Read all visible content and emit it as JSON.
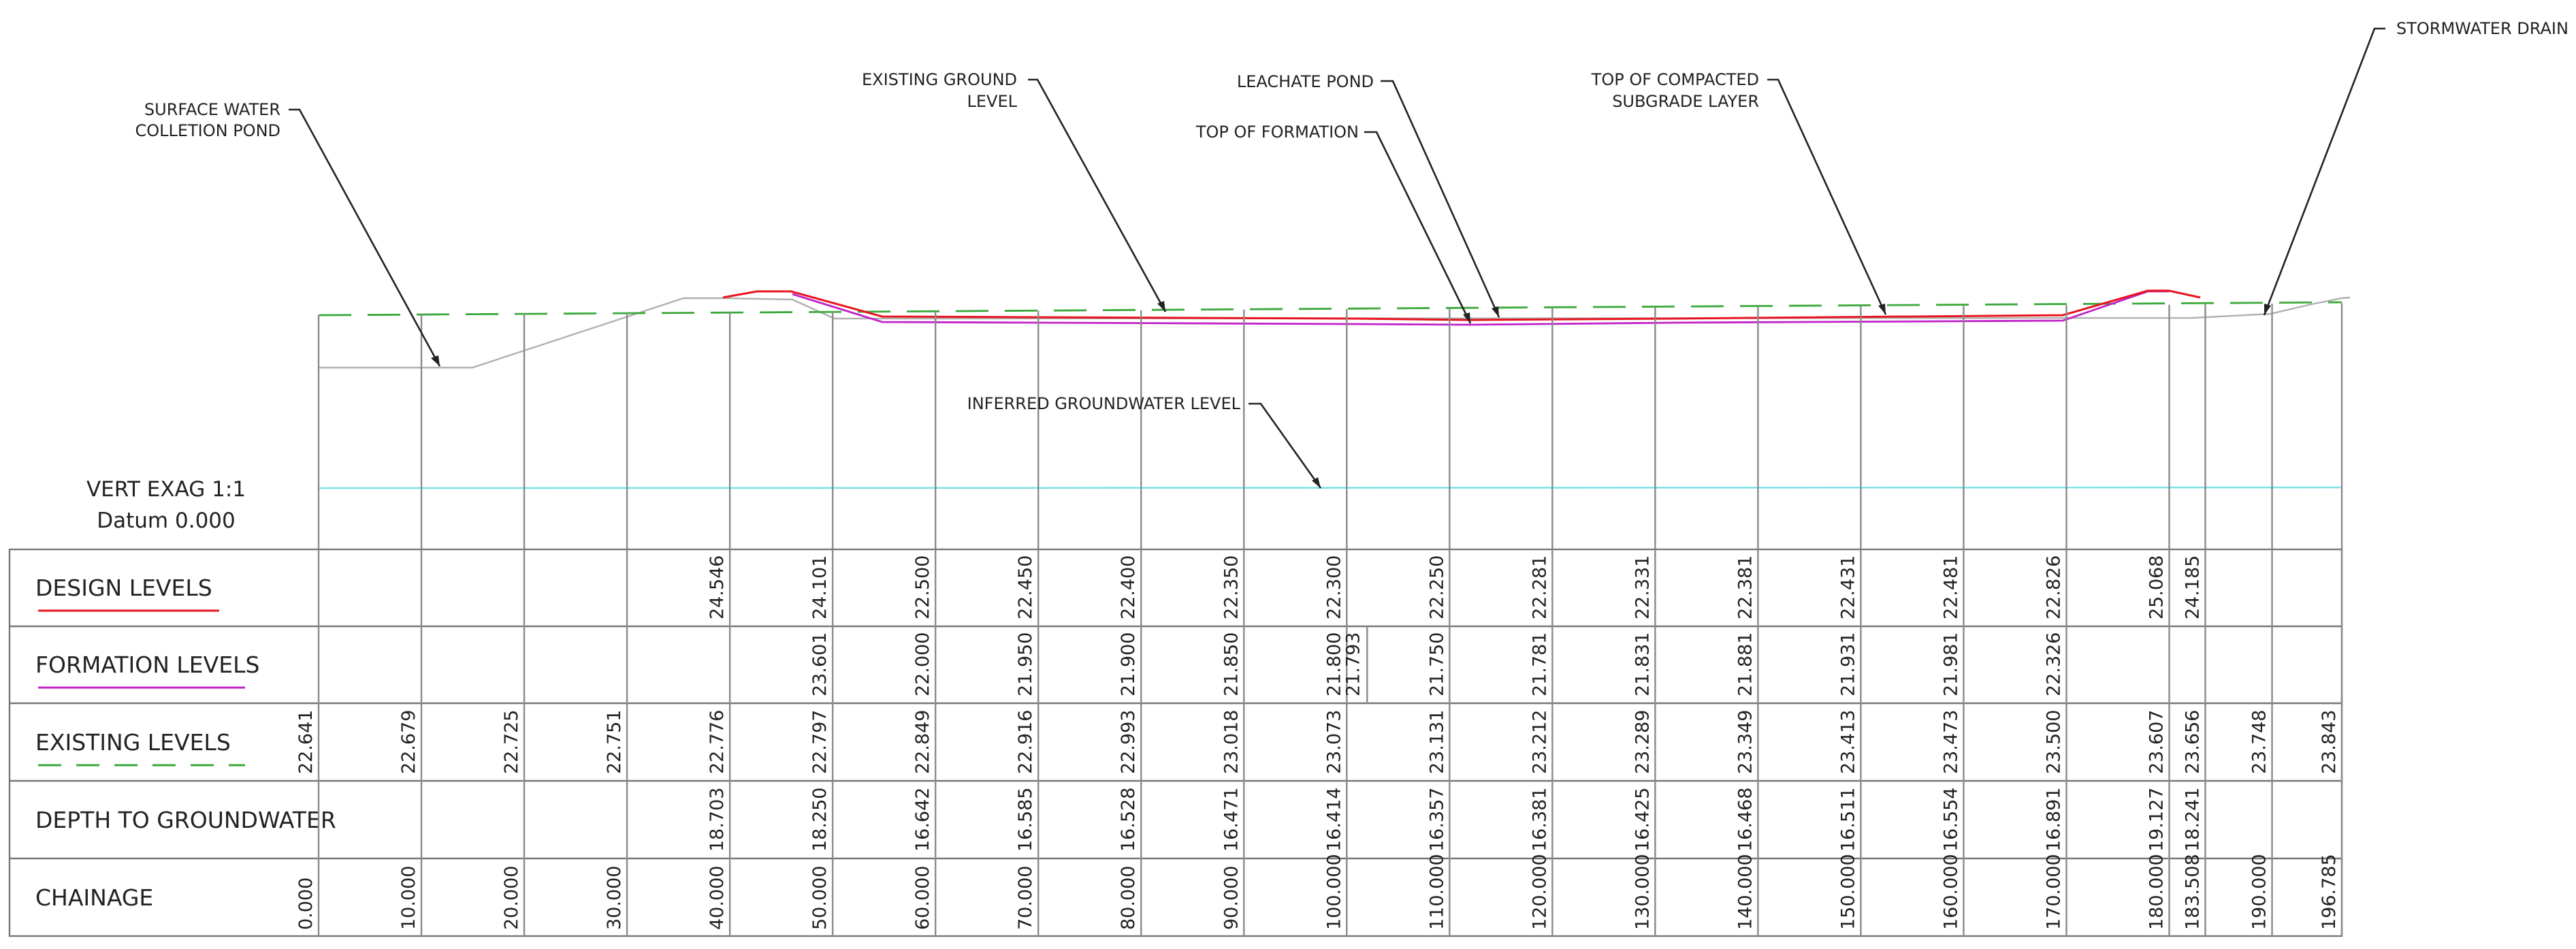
{
  "annotations": {
    "surface_water_pond": [
      "SURFACE WATER",
      "COLLETION POND"
    ],
    "existing_ground": [
      "EXISTING GROUND",
      "LEVEL"
    ],
    "leachate_pond": [
      "LEACHATE POND"
    ],
    "top_of_formation": [
      "TOP OF FORMATION"
    ],
    "top_of_subgrade": [
      "TOP OF COMPACTED",
      "SUBGRADE LAYER"
    ],
    "stormwater_drain": [
      "STORMWATER DRAIN"
    ],
    "groundwater": [
      "INFERRED GROUNDWATER LEVEL"
    ]
  },
  "scale": {
    "vert_exag": "VERT EXAG  1:1",
    "datum": "Datum 0.000"
  },
  "rows": {
    "design": "DESIGN LEVELS",
    "formation": "FORMATION LEVELS",
    "existing": "EXISTING LEVELS",
    "depth": "DEPTH TO GROUNDWATER",
    "chainage": "CHAINAGE"
  },
  "colors": {
    "design_line": "#e8141e",
    "formation_line": "#c021c8",
    "existing_line": "#3aa83a",
    "groundwater_line": "#7fe3e8",
    "surface_line": "#b0b0b0"
  },
  "chart_data": {
    "type": "table",
    "chainage": [
      "0.000",
      "10.000",
      "20.000",
      "30.000",
      "40.000",
      "50.000",
      "60.000",
      "70.000",
      "80.000",
      "90.000",
      "100.000",
      "110.000",
      "120.000",
      "130.000",
      "140.000",
      "150.000",
      "160.000",
      "170.000",
      "180.000",
      "183.508",
      "190.000",
      "196.785"
    ],
    "design_levels": [
      null,
      null,
      null,
      null,
      "24.546",
      "24.101",
      "22.500",
      "22.450",
      "22.400",
      "22.350",
      "22.300",
      "22.250",
      "22.281",
      "22.331",
      "22.381",
      "22.431",
      "22.481",
      "22.826",
      "25.068",
      "24.185",
      null,
      null
    ],
    "formation_levels": [
      null,
      null,
      null,
      null,
      null,
      "23.601",
      "22.000",
      "21.950",
      "21.900",
      "21.850",
      "21.800",
      "21.750",
      "21.781",
      "21.831",
      "21.881",
      "21.931",
      "21.981",
      "22.326",
      null,
      null,
      null,
      null
    ],
    "formation_extra": "21.793",
    "existing_levels": [
      "22.641",
      "22.679",
      "22.725",
      "22.751",
      "22.776",
      "22.797",
      "22.849",
      "22.916",
      "22.993",
      "23.018",
      "23.073",
      "23.131",
      "23.212",
      "23.289",
      "23.349",
      "23.413",
      "23.473",
      "23.500",
      "23.607",
      "23.656",
      "23.748",
      "23.843"
    ],
    "depth_to_groundwater": [
      null,
      null,
      null,
      null,
      "18.703",
      "18.250",
      "16.642",
      "16.585",
      "16.528",
      "16.471",
      "16.414",
      "16.357",
      "16.381",
      "16.425",
      "16.468",
      "16.511",
      "16.554",
      "16.891",
      "19.127",
      "18.241",
      null,
      null
    ]
  }
}
